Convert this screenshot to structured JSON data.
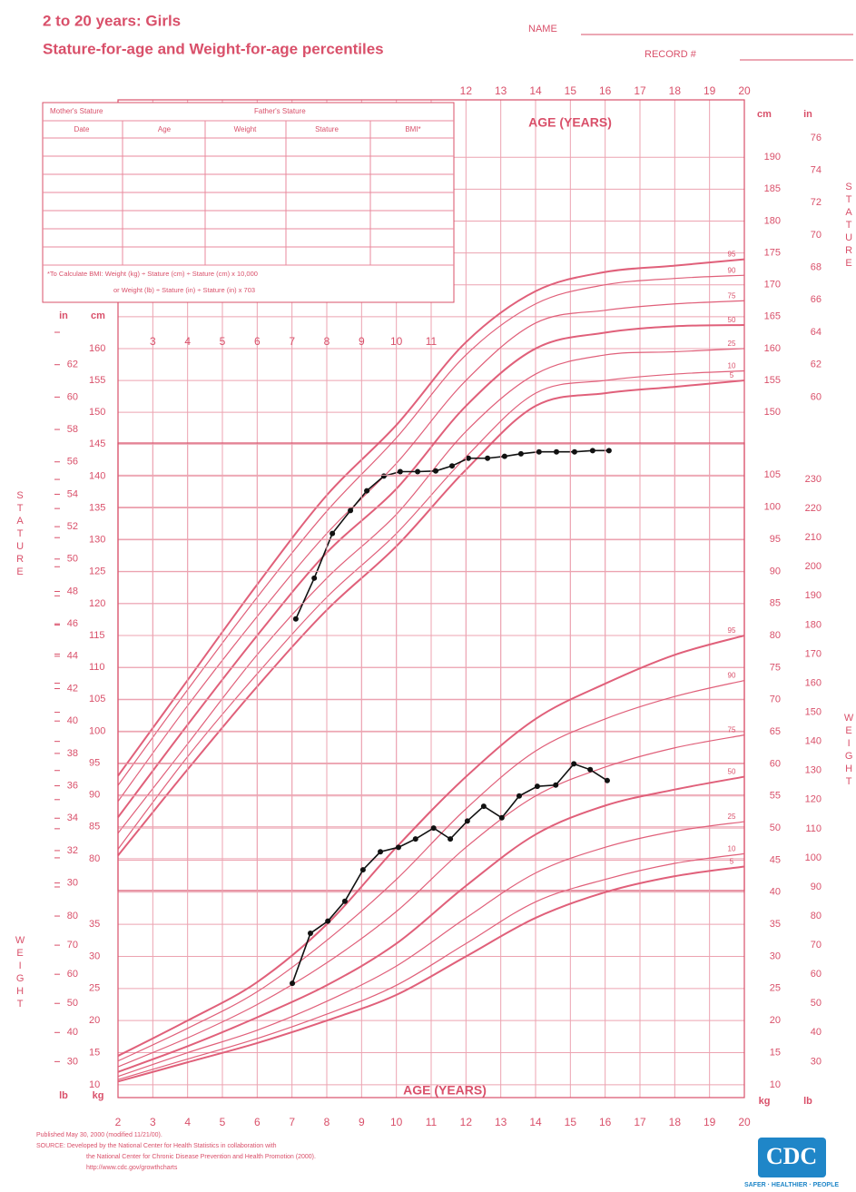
{
  "header": {
    "title": "2 to 20 years: Girls",
    "subtitle": "Stature-for-age and Weight-for-age percentiles",
    "name": "NAME",
    "record": "RECORD #"
  },
  "form": {
    "mothers_stature": "Mother's Stature",
    "fathers_stature": "Father's Stature",
    "columns": [
      "Date",
      "Age",
      "Weight",
      "Stature",
      "BMI*"
    ],
    "note": "*To Calculate BMI: Weight (kg) ÷ Stature (cm) ÷ Stature (cm) x 10,000",
    "note2": "or Weight (lb) ÷ Stature (in) ÷ Stature (in) x 703"
  },
  "chart_data": [
    {
      "type": "line",
      "label": "STATURE",
      "xlabel": "AGE (YEARS)",
      "ylabel": "cm",
      "y2label": "in",
      "xlim": [
        2,
        20
      ],
      "xticks": [
        3,
        4,
        5,
        6,
        7,
        8,
        9,
        10,
        11,
        12,
        13,
        14,
        15,
        16,
        17,
        18,
        19,
        20
      ],
      "ylim": [
        75,
        199
      ],
      "yticks": [
        80,
        85,
        90,
        95,
        100,
        105,
        110,
        115,
        120,
        125,
        130,
        135,
        140,
        145,
        150,
        155,
        160,
        165,
        170,
        175,
        180,
        185,
        190
      ],
      "y2lim": [
        29.53,
        78.35
      ],
      "y2ticks": [
        30,
        32,
        34,
        36,
        38,
        40,
        42,
        44,
        46,
        48,
        50,
        52,
        54,
        56,
        58,
        60,
        62,
        64,
        66,
        68,
        70,
        72,
        74,
        76
      ],
      "grid": true,
      "series": [
        {
          "name": "95",
          "color": "#e0607a",
          "x": [
            2,
            4,
            6,
            8,
            10,
            12,
            14,
            16,
            18,
            20
          ],
          "values": [
            93,
            108,
            123,
            137,
            148,
            161,
            169,
            172,
            173,
            174
          ]
        },
        {
          "name": "90",
          "color": "#e0607a",
          "x": [
            2,
            4,
            6,
            8,
            10,
            12,
            14,
            16,
            18,
            20
          ],
          "values": [
            91.5,
            106.5,
            121,
            134.5,
            146,
            159,
            167,
            170,
            171,
            171.5
          ]
        },
        {
          "name": "75",
          "color": "#e0607a",
          "x": [
            2,
            4,
            6,
            8,
            10,
            12,
            14,
            16,
            18,
            20
          ],
          "values": [
            89,
            104,
            118,
            131,
            142,
            155,
            164,
            166,
            167,
            167.5
          ]
        },
        {
          "name": "50",
          "color": "#e0607a",
          "x": [
            2,
            4,
            6,
            8,
            10,
            12,
            14,
            16,
            18,
            20
          ],
          "values": [
            86.5,
            101,
            115,
            128,
            138,
            151,
            160,
            162.5,
            163.5,
            163.7
          ]
        },
        {
          "name": "25",
          "color": "#e0607a",
          "x": [
            2,
            4,
            6,
            8,
            10,
            12,
            14,
            16,
            18,
            20
          ],
          "values": [
            84,
            98,
            112,
            124,
            134,
            147,
            156,
            159,
            159.5,
            160
          ]
        },
        {
          "name": "10",
          "color": "#e0607a",
          "x": [
            2,
            4,
            6,
            8,
            10,
            12,
            14,
            16,
            18,
            20
          ],
          "values": [
            81.5,
            96,
            109,
            121,
            131,
            143,
            153,
            155,
            156,
            156.5
          ]
        },
        {
          "name": "5",
          "color": "#e0607a",
          "x": [
            2,
            4,
            6,
            8,
            10,
            12,
            14,
            16,
            18,
            20
          ],
          "values": [
            80.5,
            94,
            107,
            119,
            129,
            141,
            151,
            153,
            154,
            155
          ]
        }
      ],
      "measurements": {
        "color": "#111111",
        "x": [
          7.11,
          7.64,
          8.16,
          8.68,
          9.15,
          9.64,
          10.11,
          10.61,
          11.13,
          11.6,
          12.07,
          12.62,
          13.11,
          13.58,
          14.1,
          14.6,
          15.12,
          15.64,
          16.11
        ],
        "values": [
          117.6,
          124,
          131,
          134.6,
          137.7,
          140,
          140.7,
          140.7,
          140.8,
          141.6,
          142.8,
          142.8,
          143.1,
          143.5,
          143.8,
          143.8,
          143.8,
          144,
          144
        ]
      }
    },
    {
      "type": "line",
      "label": "WEIGHT",
      "xlabel": "AGE (YEARS)",
      "ylabel": "kg",
      "y2label": "lb",
      "xlim": [
        2,
        20
      ],
      "xticks": [
        2,
        3,
        4,
        5,
        6,
        7,
        8,
        9,
        10,
        11,
        12,
        13,
        14,
        15,
        16,
        17,
        18,
        19,
        20
      ],
      "ylim": [
        8,
        110
      ],
      "yticks": [
        10,
        15,
        20,
        25,
        30,
        35,
        40,
        45,
        50,
        55,
        60,
        65,
        70,
        75,
        80,
        85,
        90,
        95,
        100,
        105
      ],
      "y2lim": [
        17.64,
        242.5
      ],
      "y2ticks": [
        30,
        40,
        50,
        60,
        70,
        80,
        90,
        100,
        110,
        120,
        130,
        140,
        150,
        160,
        170,
        180,
        190,
        200,
        210,
        220,
        230
      ],
      "grid": true,
      "series": [
        {
          "name": "95",
          "color": "#e0607a",
          "x": [
            2,
            4,
            6,
            8,
            10,
            12,
            14,
            16,
            18,
            20
          ],
          "values": [
            14.5,
            20,
            26,
            35,
            47,
            58,
            67,
            72.5,
            77,
            80
          ]
        },
        {
          "name": "90",
          "color": "#e0607a",
          "x": [
            2,
            4,
            6,
            8,
            10,
            12,
            14,
            16,
            18,
            20
          ],
          "values": [
            13.7,
            18.8,
            24.5,
            32.5,
            42,
            53,
            62,
            67,
            70.5,
            73
          ]
        },
        {
          "name": "75",
          "color": "#e0607a",
          "x": [
            2,
            4,
            6,
            8,
            10,
            12,
            14,
            16,
            18,
            20
          ],
          "values": [
            12.8,
            17.3,
            22.5,
            29,
            37,
            47,
            55,
            59.5,
            62.5,
            64.5
          ]
        },
        {
          "name": "50",
          "color": "#e0607a",
          "x": [
            2,
            4,
            6,
            8,
            10,
            12,
            14,
            16,
            18,
            20
          ],
          "values": [
            12,
            16,
            20.5,
            25.5,
            32,
            41,
            49,
            53.5,
            56,
            58
          ]
        },
        {
          "name": "25",
          "color": "#e0607a",
          "x": [
            2,
            4,
            6,
            8,
            10,
            12,
            14,
            16,
            18,
            20
          ],
          "values": [
            11.3,
            15,
            18.5,
            23,
            28.5,
            36,
            43,
            47,
            49.5,
            51
          ]
        },
        {
          "name": "10",
          "color": "#e0607a",
          "x": [
            2,
            4,
            6,
            8,
            10,
            12,
            14,
            16,
            18,
            20
          ],
          "values": [
            10.8,
            14,
            17.2,
            21,
            25.5,
            32,
            38.5,
            42,
            44.5,
            46
          ]
        },
        {
          "name": "5",
          "color": "#e0607a",
          "x": [
            2,
            4,
            6,
            8,
            10,
            12,
            14,
            16,
            18,
            20
          ],
          "values": [
            10.5,
            13.5,
            16.5,
            20,
            24,
            30,
            36,
            40,
            42.5,
            44
          ]
        }
      ],
      "measurements": {
        "color": "#111111",
        "x": [
          7.01,
          7.53,
          8.03,
          8.52,
          9.04,
          9.54,
          10.06,
          10.55,
          11.07,
          11.55,
          12.04,
          12.51,
          13.03,
          13.53,
          14.05,
          14.58,
          15.1,
          15.57,
          16.06
        ],
        "values": [
          25.8,
          33.6,
          35.5,
          38.6,
          43.5,
          46.3,
          47,
          48.3,
          50,
          48.3,
          51.1,
          53.4,
          51.6,
          55,
          56.5,
          56.7,
          60,
          59.1,
          57.4
        ]
      }
    }
  ],
  "footer": {
    "published": "Published May 30, 2000 (modified 11/21/00).",
    "source": "SOURCE: Developed by the National Center for Health Statistics in collaboration with",
    "source2": "the National Center for Chronic Disease Prevention and Health Promotion (2000).",
    "url": "http://www.cdc.gov/growthcharts",
    "logo": "CDC",
    "tagline": "SAFER · HEALTHIER · PEOPLE"
  }
}
